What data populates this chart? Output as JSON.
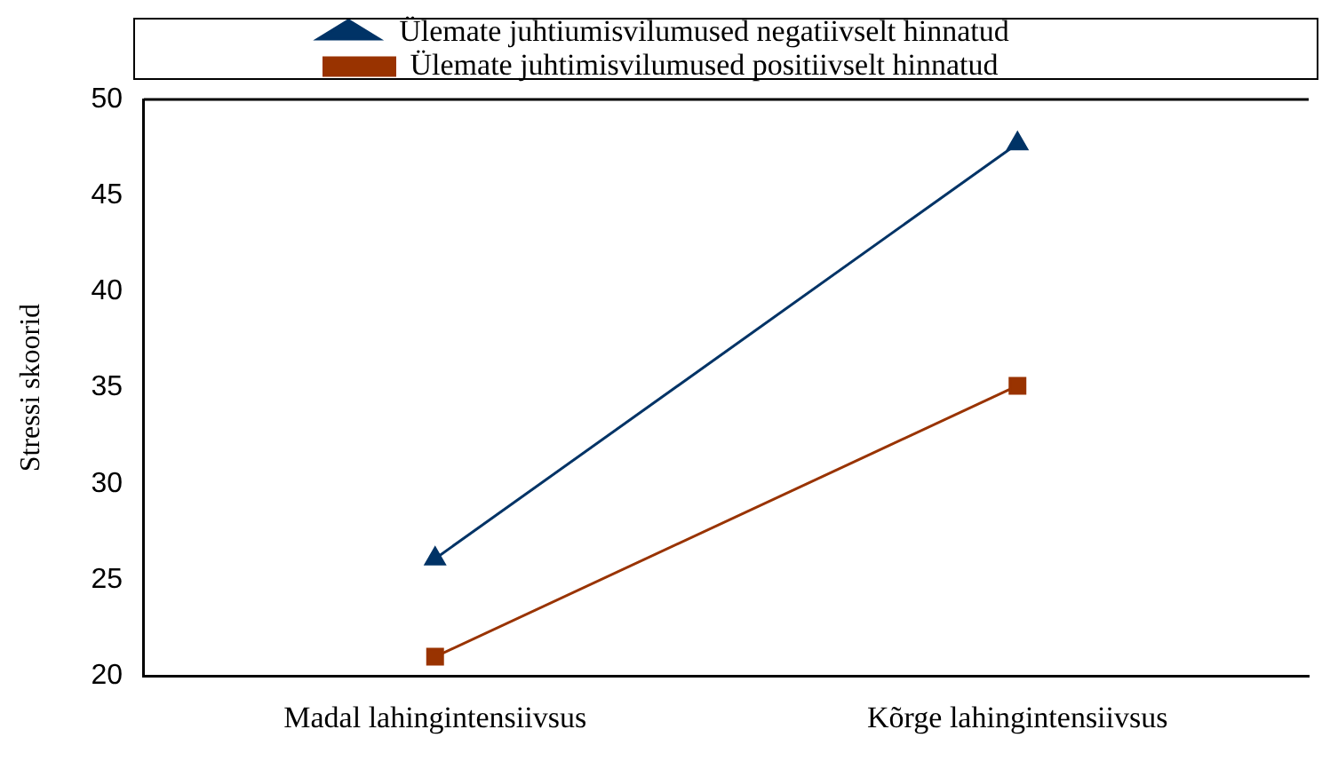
{
  "chart_data": {
    "type": "line",
    "ylabel": "Stressi skoorid",
    "categories": [
      "Madal lahingintensiivsus",
      "Kõrge lahingintensiivsus"
    ],
    "series": [
      {
        "name": "Ülemate juhtiumisvilumused negatiivselt hinnatud",
        "color": "#003366",
        "marker": "triangle",
        "values": [
          26.1,
          47.7
        ]
      },
      {
        "name": "Ülemate juhtimisvilumused positiivselt hinnatud",
        "color": "#993300",
        "marker": "square",
        "values": [
          21.0,
          35.1
        ]
      }
    ],
    "ylim": [
      20,
      50
    ],
    "yticks": [
      20,
      25,
      30,
      35,
      40,
      45,
      50
    ],
    "grid": false,
    "legend": "top",
    "line_style": "solid"
  }
}
